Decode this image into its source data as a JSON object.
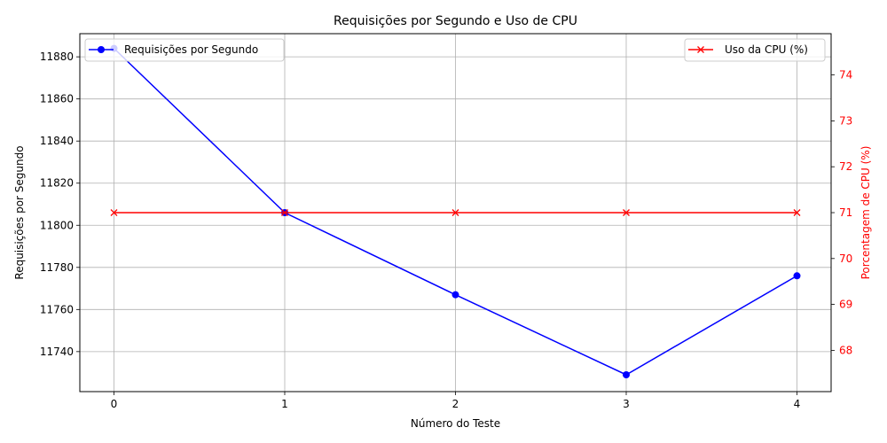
{
  "chart_data": {
    "type": "line",
    "title": "Requisições por Segundo e Uso de CPU",
    "xlabel": "Número do Teste",
    "ylabel_left": "Requisições por Segundo",
    "ylabel_right": "Porcentagem de CPU (%)",
    "x": [
      0,
      1,
      2,
      3,
      4
    ],
    "x_tick_labels": [
      "0",
      "1",
      "2",
      "3",
      "4"
    ],
    "xlim": [
      -0.2,
      4.2
    ],
    "ylim_left": [
      11721,
      11891
    ],
    "y_left_ticks": [
      11740,
      11760,
      11780,
      11800,
      11820,
      11840,
      11860,
      11880
    ],
    "ylim_right": [
      67.1,
      74.9
    ],
    "y_right_ticks": [
      68,
      69,
      70,
      71,
      72,
      73,
      74
    ],
    "grid": true,
    "series": [
      {
        "name": "Requisições por Segundo",
        "axis": "left",
        "color": "#0000ff",
        "marker": "circle",
        "values": [
          11884,
          11806,
          11767,
          11729,
          11776
        ]
      },
      {
        "name": "Uso da CPU (%)",
        "axis": "right",
        "color": "#ff0000",
        "marker": "x",
        "values": [
          71,
          71,
          71,
          71,
          71
        ]
      }
    ],
    "legend_left_placement": "upper-left",
    "legend_right_placement": "upper-right"
  }
}
